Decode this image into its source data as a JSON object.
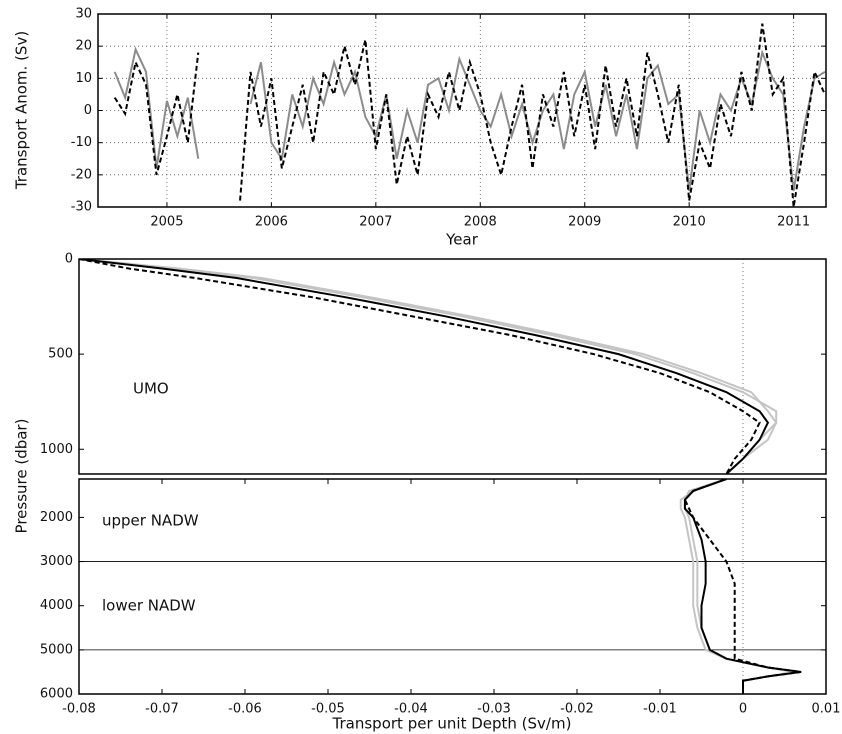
{
  "chart_data": [
    {
      "type": "line",
      "ylabel": "Transport Anom. (Sv)",
      "xlabel": "Year",
      "xlim": [
        2004.34,
        2011.31
      ],
      "xticks": [
        2005,
        2006,
        2007,
        2008,
        2009,
        2010,
        2011
      ],
      "ylim": [
        -30,
        30
      ],
      "yticks": [
        -30,
        -20,
        -10,
        0,
        10,
        20,
        30
      ],
      "grid": true,
      "x": [
        2004.5,
        2004.6,
        2004.7,
        2004.8,
        2004.9,
        2005.0,
        2005.1,
        2005.2,
        2005.3,
        2005.4,
        2005.5,
        2005.6,
        2005.7,
        2005.8,
        2005.9,
        2006.0,
        2006.1,
        2006.2,
        2006.3,
        2006.4,
        2006.5,
        2006.6,
        2006.7,
        2006.8,
        2006.9,
        2007.0,
        2007.1,
        2007.2,
        2007.3,
        2007.4,
        2007.5,
        2007.6,
        2007.7,
        2007.8,
        2007.9,
        2008.0,
        2008.1,
        2008.2,
        2008.3,
        2008.4,
        2008.5,
        2008.6,
        2008.7,
        2008.8,
        2008.9,
        2009.0,
        2009.1,
        2009.2,
        2009.3,
        2009.4,
        2009.5,
        2009.6,
        2009.7,
        2009.8,
        2009.9,
        2010.0,
        2010.1,
        2010.2,
        2010.3,
        2010.4,
        2010.5,
        2010.6,
        2010.7,
        2010.8,
        2010.9,
        2011.0,
        2011.1,
        2011.2,
        2011.3
      ],
      "series": [
        {
          "color": "#8c8c8c",
          "dashed": false,
          "values": [
            12,
            4,
            19,
            12,
            -18,
            3,
            -8,
            4,
            -15,
            null,
            null,
            null,
            null,
            2,
            15,
            -10,
            -15,
            5,
            -5,
            10,
            2,
            15,
            5,
            12,
            -2,
            -8,
            5,
            -15,
            0,
            -10,
            8,
            10,
            0,
            16,
            8,
            0,
            -5,
            5,
            -8,
            2,
            -10,
            0,
            5,
            -12,
            5,
            12,
            -5,
            8,
            -8,
            5,
            -12,
            10,
            14,
            2,
            5,
            -25,
            0,
            -10,
            5,
            0,
            10,
            2,
            18,
            10,
            5,
            -25,
            -5,
            10,
            12
          ]
        },
        {
          "color": "#000000",
          "dashed": true,
          "values": [
            4,
            -1,
            15,
            8,
            -20,
            -8,
            5,
            -10,
            18,
            null,
            null,
            null,
            -28,
            12,
            -5,
            10,
            -18,
            -5,
            8,
            -10,
            12,
            5,
            20,
            8,
            22,
            -12,
            5,
            -23,
            -8,
            -20,
            5,
            -2,
            12,
            0,
            15,
            5,
            -10,
            -20,
            -5,
            8,
            -18,
            5,
            -5,
            12,
            -8,
            8,
            -12,
            14,
            -5,
            10,
            -8,
            18,
            5,
            -10,
            8,
            -28,
            -10,
            -18,
            2,
            -8,
            12,
            0,
            27,
            5,
            10,
            -30,
            -10,
            12,
            5
          ]
        }
      ]
    },
    {
      "type": "profile",
      "ylabel": "Pressure (dbar)",
      "annotations": [
        "UMO"
      ],
      "xlim": [
        -0.08,
        0.01
      ],
      "ylim": [
        0,
        1130
      ],
      "y_inverted": true,
      "yticks": [
        0,
        500,
        1000
      ],
      "vlines": [
        0
      ],
      "y": [
        0,
        50,
        100,
        200,
        300,
        400,
        500,
        600,
        700,
        800,
        860,
        950,
        1050,
        1130
      ],
      "series": [
        {
          "color": "#c4c4c4",
          "dashed": false,
          "values": [
            -0.08,
            -0.069,
            -0.059,
            -0.046,
            -0.034,
            -0.023,
            -0.013,
            -0.006,
            0.0,
            0.004,
            0.004,
            0.003,
            0.0,
            -0.002
          ]
        },
        {
          "color": "#c4c4c4",
          "dashed": false,
          "values": [
            -0.08,
            -0.068,
            -0.058,
            -0.045,
            -0.033,
            -0.022,
            -0.012,
            -0.005,
            0.001,
            0.003,
            0.004,
            0.002,
            0.0,
            -0.002
          ]
        },
        {
          "color": "#000000",
          "dashed": false,
          "values": [
            -0.08,
            -0.07,
            -0.061,
            -0.048,
            -0.036,
            -0.025,
            -0.015,
            -0.008,
            -0.002,
            0.002,
            0.003,
            0.002,
            0.0,
            -0.002
          ]
        },
        {
          "color": "#000000",
          "dashed": true,
          "values": [
            -0.08,
            -0.074,
            -0.066,
            -0.052,
            -0.04,
            -0.028,
            -0.018,
            -0.01,
            -0.004,
            0.0,
            0.002,
            0.001,
            -0.001,
            -0.002
          ]
        }
      ]
    },
    {
      "type": "profile",
      "xlabel": "Transport per unit Depth (Sv/m)",
      "annotations": [
        "upper NADW",
        "lower NADW"
      ],
      "xlim": [
        -0.08,
        0.01
      ],
      "xticks": [
        -0.08,
        -0.07,
        -0.06,
        -0.05,
        -0.04,
        -0.03,
        -0.02,
        -0.01,
        0,
        0.01
      ],
      "ylim": [
        1130,
        6000
      ],
      "y_inverted": true,
      "yticks": [
        2000,
        3000,
        4000,
        5000,
        6000
      ],
      "vlines": [
        0
      ],
      "hlines": [
        3000,
        5000
      ],
      "y": [
        1130,
        1400,
        1600,
        1800,
        2000,
        2500,
        3000,
        3500,
        4000,
        4500,
        5000,
        5200,
        5400,
        5500,
        5600,
        5700,
        6000
      ],
      "series": [
        {
          "color": "#c4c4c4",
          "dashed": false,
          "values": [
            -0.002,
            -0.006,
            -0.0075,
            -0.0075,
            -0.007,
            -0.0065,
            -0.006,
            -0.006,
            -0.006,
            -0.0055,
            -0.0045,
            -0.002,
            0.003,
            0.006,
            0.003,
            0.0,
            0.0
          ]
        },
        {
          "color": "#c4c4c4",
          "dashed": false,
          "values": [
            -0.002,
            -0.0065,
            -0.007,
            -0.007,
            -0.0065,
            -0.006,
            -0.0055,
            -0.0055,
            -0.0055,
            -0.005,
            -0.004,
            -0.002,
            0.003,
            0.0065,
            0.003,
            0.0,
            0.0
          ]
        },
        {
          "color": "#000000",
          "dashed": false,
          "values": [
            -0.002,
            -0.006,
            -0.007,
            -0.007,
            -0.006,
            -0.005,
            -0.0045,
            -0.0045,
            -0.005,
            -0.005,
            -0.004,
            -0.002,
            0.003,
            0.007,
            0.003,
            0.0,
            0.0
          ]
        },
        {
          "color": "#000000",
          "dashed": true,
          "values": [
            -0.002,
            -0.006,
            -0.007,
            -0.0065,
            -0.006,
            -0.004,
            -0.002,
            -0.001,
            -0.001,
            -0.001,
            -0.001,
            -0.001,
            0.003,
            0.007,
            0.003,
            0.0,
            0.0
          ]
        }
      ]
    }
  ]
}
